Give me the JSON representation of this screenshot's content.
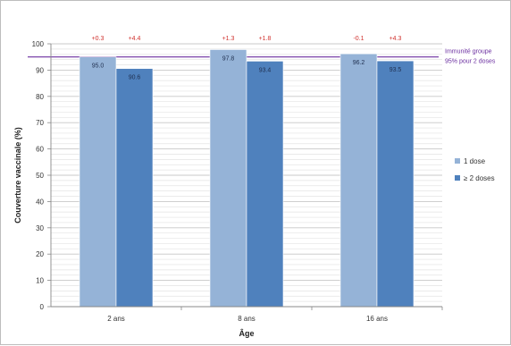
{
  "chart_data": {
    "type": "bar",
    "xlabel": "Âge",
    "ylabel": "Couverture vaccinale (%)",
    "ylim": [
      0,
      100
    ],
    "yticks": [
      0,
      10,
      20,
      30,
      40,
      50,
      60,
      70,
      80,
      90,
      100
    ],
    "grid": true,
    "legend_position": "right",
    "categories": [
      "2 ans",
      "8 ans",
      "16 ans"
    ],
    "series": [
      {
        "name": "1 dose",
        "color": "#95b3d7",
        "values": [
          95.0,
          97.8,
          96.2
        ],
        "labels": [
          "95.0",
          "97.8",
          "96.2"
        ]
      },
      {
        "name": "≥ 2 doses",
        "color": "#4f81bd",
        "values": [
          90.6,
          93.4,
          93.5
        ],
        "labels": [
          "90.6",
          "93.4",
          "93.5"
        ]
      }
    ],
    "annotations": [
      [
        "+0.3",
        "+4.4"
      ],
      [
        "+1.3",
        "+1.8"
      ],
      [
        "-0.1",
        "+4.3"
      ]
    ],
    "reference_line": {
      "value": 95,
      "label_lines": [
        "Immunité groupe",
        "95% pour 2 doses"
      ],
      "color": "#6b2fa0"
    }
  }
}
